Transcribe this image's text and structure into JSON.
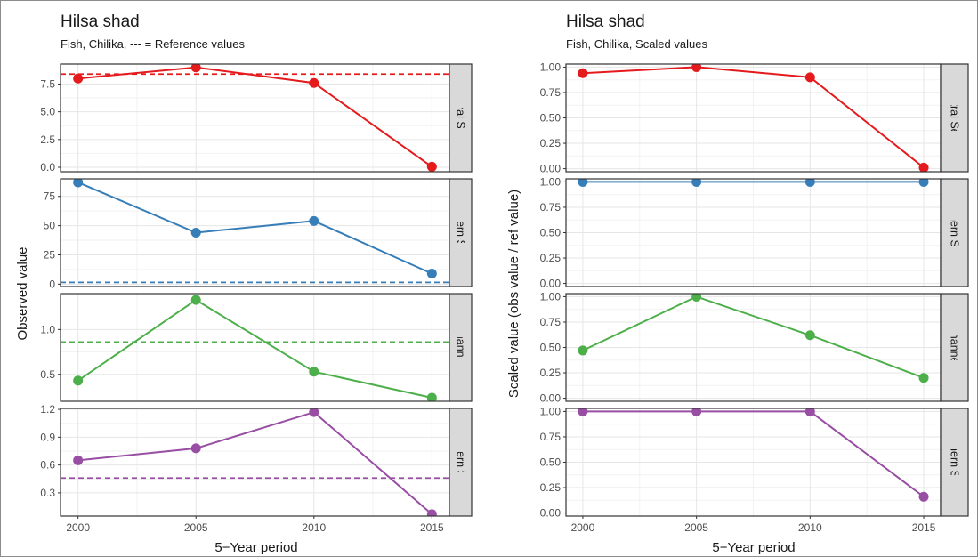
{
  "chart_data": [
    {
      "type": "line",
      "title": "Hilsa shad",
      "subtitle": "Fish, Chilika, --- = Reference values",
      "xlabel": "5−Year period",
      "ylabel": "Observed value",
      "x": [
        2000,
        2005,
        2010,
        2015
      ],
      "x_tick_labels": [
        "2000",
        "2005",
        "2010",
        "2015"
      ],
      "grid": true,
      "panels": [
        {
          "strip": "Central Sector",
          "color": "#e41a1c",
          "ylim": [
            -0.4,
            9.3
          ],
          "y_tick_labels": [
            "0.0",
            "2.5",
            "5.0",
            "7.5"
          ],
          "y_ticks": [
            0,
            2.5,
            5,
            7.5
          ],
          "values": [
            8.0,
            9.0,
            7.6,
            0.05
          ],
          "reference": 8.4
        },
        {
          "strip": "Northern Sector",
          "color": "#377eb8",
          "ylim": [
            -2,
            90
          ],
          "y_tick_labels": [
            "0",
            "25",
            "50",
            "75"
          ],
          "y_ticks": [
            0,
            25,
            50,
            75
          ],
          "values": [
            87,
            44,
            54,
            9
          ],
          "reference": 1.5
        },
        {
          "strip": "Outer Channel Sector",
          "color": "#4daf4a",
          "ylim": [
            0.2,
            1.4
          ],
          "y_tick_labels": [
            "0.5",
            "1.0"
          ],
          "y_ticks": [
            0.5,
            1.0
          ],
          "values": [
            0.43,
            1.33,
            0.53,
            0.24
          ],
          "reference": 0.86
        },
        {
          "strip": "Southern Sector",
          "color": "#984ea3",
          "ylim": [
            0.05,
            1.21
          ],
          "y_tick_labels": [
            "0.3",
            "0.6",
            "0.9",
            "1.2"
          ],
          "y_ticks": [
            0.3,
            0.6,
            0.9,
            1.2
          ],
          "values": [
            0.65,
            0.78,
            1.17,
            0.07
          ],
          "reference": 0.46
        }
      ]
    },
    {
      "type": "line",
      "title": "Hilsa shad",
      "subtitle": "Fish, Chilika, Scaled values",
      "xlabel": "5−Year period",
      "ylabel": "Scaled value (obs value / ref value)",
      "x": [
        2000,
        2005,
        2010,
        2015
      ],
      "x_tick_labels": [
        "2000",
        "2005",
        "2010",
        "2015"
      ],
      "grid": true,
      "panels": [
        {
          "strip": "Central Sector",
          "color": "#e41a1c",
          "ylim": [
            -0.03,
            1.03
          ],
          "y_tick_labels": [
            "0.00",
            "0.25",
            "0.50",
            "0.75",
            "1.00"
          ],
          "y_ticks": [
            0,
            0.25,
            0.5,
            0.75,
            1.0
          ],
          "values": [
            0.94,
            1.0,
            0.9,
            0.01
          ]
        },
        {
          "strip": "Northern Sector",
          "color": "#377eb8",
          "ylim": [
            -0.03,
            1.03
          ],
          "y_tick_labels": [
            "0.00",
            "0.25",
            "0.50",
            "0.75",
            "1.00"
          ],
          "y_ticks": [
            0,
            0.25,
            0.5,
            0.75,
            1.0
          ],
          "values": [
            1.0,
            1.0,
            1.0,
            1.0
          ]
        },
        {
          "strip": "Outer Channel Sector",
          "color": "#4daf4a",
          "ylim": [
            -0.03,
            1.03
          ],
          "y_tick_labels": [
            "0.00",
            "0.25",
            "0.50",
            "0.75",
            "1.00"
          ],
          "y_ticks": [
            0,
            0.25,
            0.5,
            0.75,
            1.0
          ],
          "values": [
            0.47,
            1.0,
            0.62,
            0.2
          ]
        },
        {
          "strip": "Southern Sector",
          "color": "#984ea3",
          "ylim": [
            -0.03,
            1.03
          ],
          "y_tick_labels": [
            "0.00",
            "0.25",
            "0.50",
            "0.75",
            "1.00"
          ],
          "y_ticks": [
            0,
            0.25,
            0.5,
            0.75,
            1.0
          ],
          "values": [
            1.0,
            1.0,
            1.0,
            0.16
          ]
        }
      ]
    }
  ]
}
